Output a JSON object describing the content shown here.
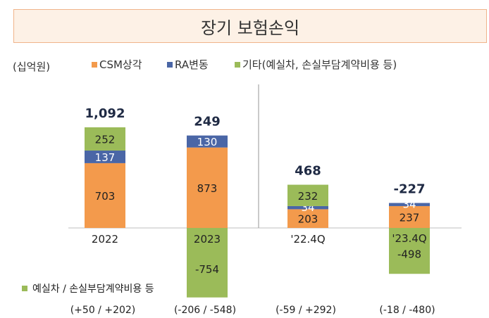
{
  "chart_data": {
    "type": "bar",
    "stacked": true,
    "title": "장기 보험손익",
    "unit_label": "(십억원)",
    "categories": [
      "2022",
      "2023",
      "'22.4Q",
      "'23.4Q"
    ],
    "series": [
      {
        "name": "CSM상각",
        "color": "#f39a4c",
        "values": [
          703,
          873,
          203,
          237
        ]
      },
      {
        "name": "RA변동",
        "color": "#4a66a6",
        "values": [
          137,
          130,
          34,
          34
        ]
      },
      {
        "name": "기타(예실차, 손실부담계약비용 등)",
        "color": "#9bbb59",
        "values": [
          252,
          -754,
          232,
          -498
        ]
      }
    ],
    "totals": [
      "1,092",
      "249",
      "468",
      "-227"
    ],
    "data_labels": [
      [
        "703",
        "873",
        "203",
        "237"
      ],
      [
        "137",
        "130",
        "34",
        "34"
      ],
      [
        "252",
        "-754",
        "232",
        "-498"
      ]
    ],
    "footnote_legend": "예실차 / 손실부담계약비용 등",
    "footnote_color": "#9bbb59",
    "footnotes": [
      "(+50 / +202)",
      "(-206 / -548)",
      "(-59 / +292)",
      "(-18 / -480)"
    ],
    "legend_placement": "top",
    "grid": false
  }
}
